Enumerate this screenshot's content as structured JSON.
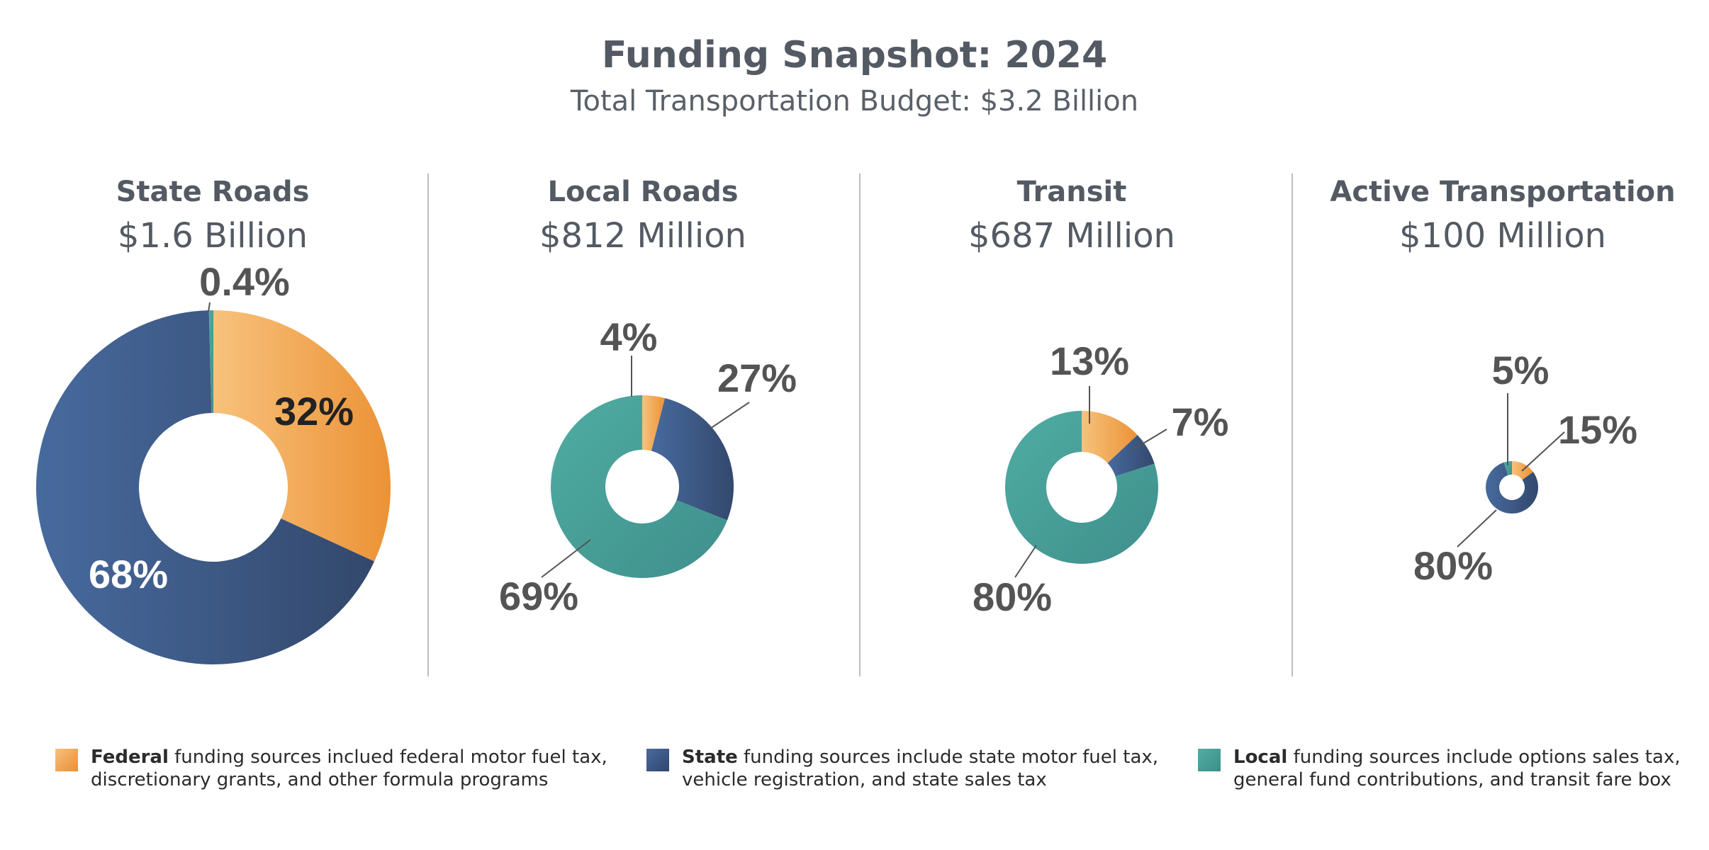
{
  "title": "Funding Snapshot: 2024",
  "subtitle": "Total Transportation Budget: $3.2 Billion",
  "colors": {
    "federal": "#f0a050",
    "state": "#3e5a8a",
    "local": "#48a49b",
    "label": "#545454"
  },
  "chart_data": [
    {
      "type": "pie",
      "title": "State Roads",
      "subtitle": "$1.6 Billion",
      "slices": [
        {
          "source": "Federal",
          "value": 32,
          "label": "32%"
        },
        {
          "source": "State",
          "value": 68,
          "label": "68%"
        },
        {
          "source": "Local",
          "value": 0.4,
          "label": "0.4%"
        }
      ]
    },
    {
      "type": "pie",
      "title": "Local Roads",
      "subtitle": "$812 Million",
      "slices": [
        {
          "source": "Federal",
          "value": 4,
          "label": "4%"
        },
        {
          "source": "State",
          "value": 27,
          "label": "27%"
        },
        {
          "source": "Local",
          "value": 69,
          "label": "69%"
        }
      ]
    },
    {
      "type": "pie",
      "title": "Transit",
      "subtitle": "$687 Million",
      "slices": [
        {
          "source": "Federal",
          "value": 13,
          "label": "13%"
        },
        {
          "source": "State",
          "value": 7,
          "label": "7%"
        },
        {
          "source": "Local",
          "value": 80,
          "label": "80%"
        }
      ]
    },
    {
      "type": "pie",
      "title": "Active Transportation",
      "subtitle": "$100 Million",
      "slices": [
        {
          "source": "Federal",
          "value": 15,
          "label": "15%"
        },
        {
          "source": "State",
          "value": 80,
          "label": "80%"
        },
        {
          "source": "Local",
          "value": 5,
          "label": "5%"
        }
      ]
    }
  ],
  "legend": [
    {
      "key": "federal",
      "bold": "Federal",
      "text": " funding sources inclued federal motor fuel tax,",
      "text2": "discretionary grants, and other formula programs"
    },
    {
      "key": "state",
      "bold": "State",
      "text": " funding sources include state motor fuel tax,",
      "text2": "vehicle registration, and state sales tax"
    },
    {
      "key": "local",
      "bold": "Local",
      "text": " funding sources include options sales tax,",
      "text2": "general fund contributions, and transit fare box"
    }
  ]
}
